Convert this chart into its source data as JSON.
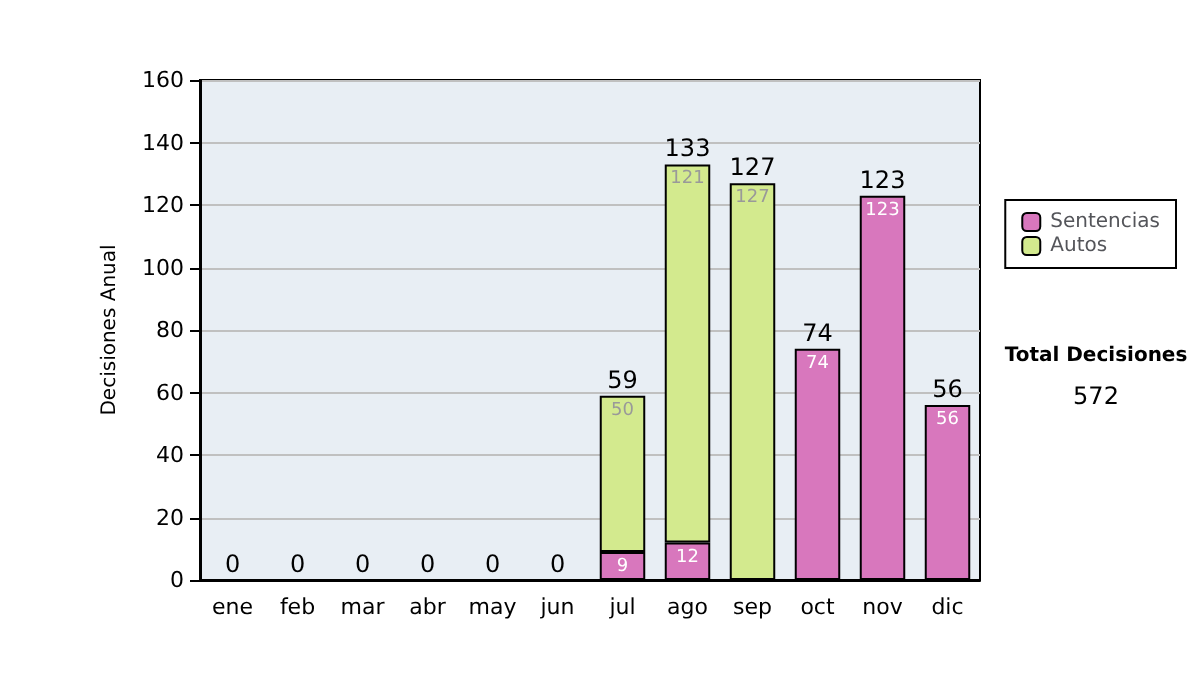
{
  "chart_data": {
    "type": "bar",
    "stacked": true,
    "ylabel": "Decisiones Anual",
    "categories": [
      "ene",
      "feb",
      "mar",
      "abr",
      "may",
      "jun",
      "jul",
      "ago",
      "sep",
      "oct",
      "nov",
      "dic"
    ],
    "series": [
      {
        "name": "Sentencias",
        "color": "#d877bd",
        "values": [
          0,
          0,
          0,
          0,
          0,
          0,
          9,
          12,
          0,
          74,
          123,
          56
        ],
        "value_labels": [
          null,
          null,
          null,
          null,
          null,
          null,
          "9",
          "12",
          null,
          "74",
          "123",
          "56"
        ]
      },
      {
        "name": "Autos",
        "color": "#d3ea8e",
        "values": [
          0,
          0,
          0,
          0,
          0,
          0,
          50,
          121,
          127,
          0,
          0,
          0
        ],
        "value_labels": [
          null,
          null,
          null,
          null,
          null,
          null,
          "50",
          "121",
          "127",
          null,
          null,
          null
        ]
      }
    ],
    "totals": [
      "0",
      "0",
      "0",
      "0",
      "0",
      "0",
      "59",
      "133",
      "127",
      "74",
      "123",
      "56"
    ],
    "ylim": [
      0,
      160
    ],
    "yticks": [
      0,
      20,
      40,
      60,
      80,
      100,
      120,
      140,
      160
    ],
    "grid": "y",
    "legend": "right",
    "annotations": [
      "Total Decisiones",
      "572"
    ]
  }
}
